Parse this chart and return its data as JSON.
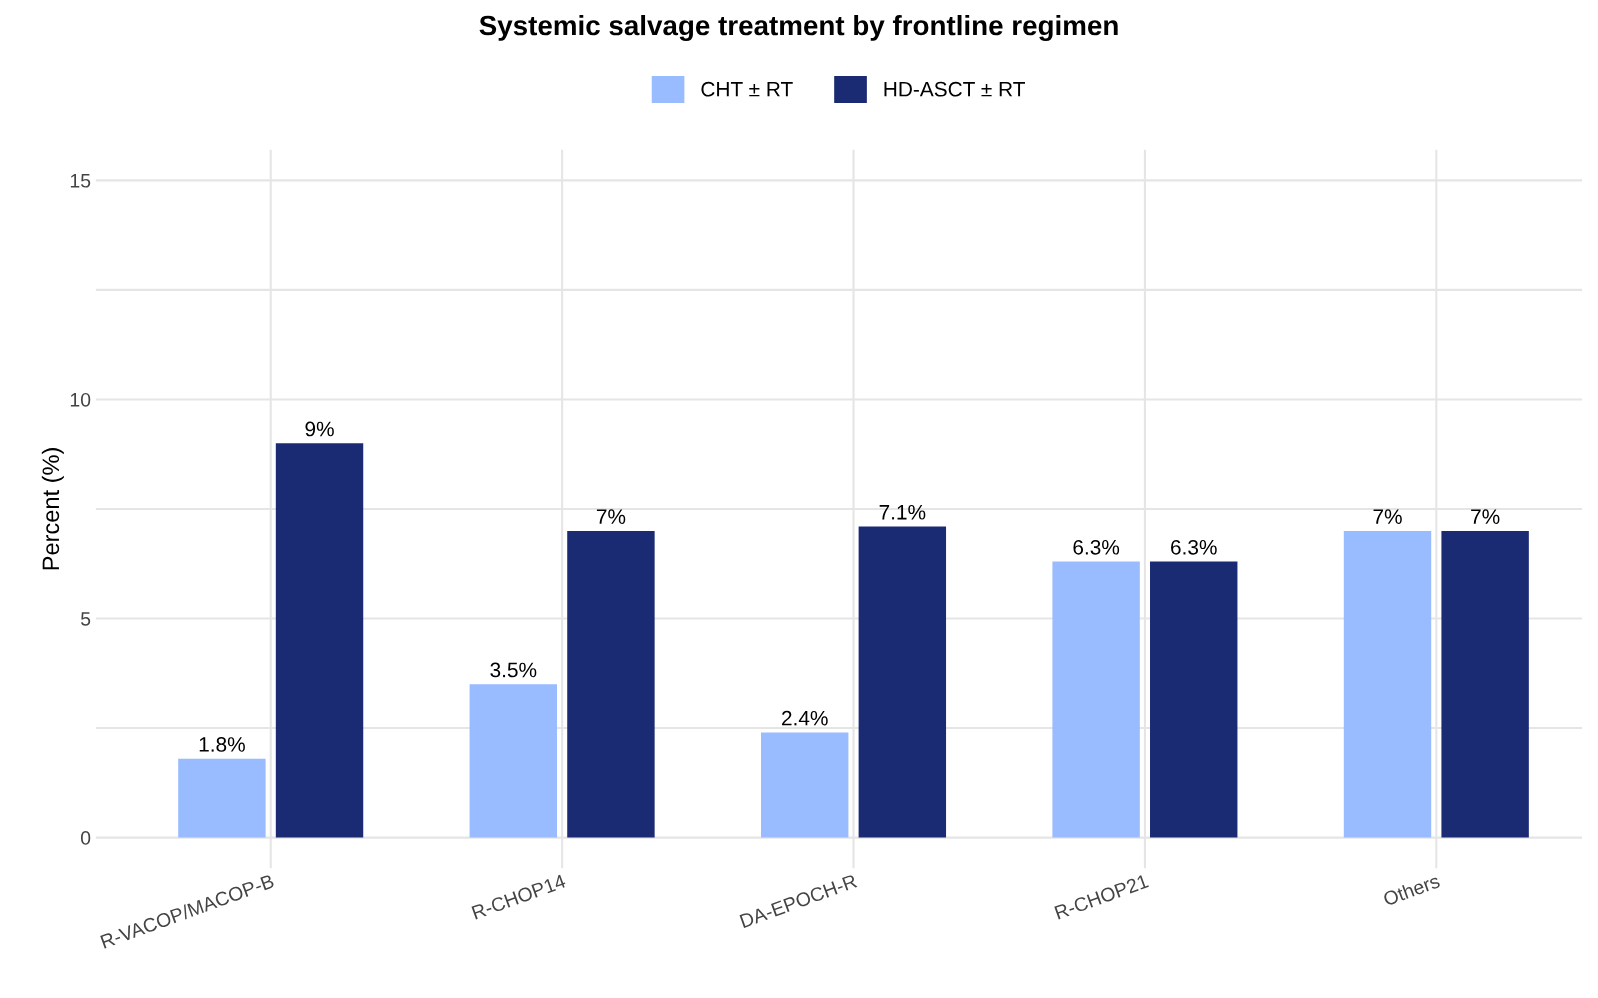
{
  "chart_data": {
    "type": "bar",
    "title": "Systemic salvage treatment by frontline regimen",
    "ylabel": "Percent (%)",
    "categories": [
      "R-VACOP/MACOP-B",
      "R-CHOP14",
      "DA-EPOCH-R",
      "R-CHOP21",
      "Others"
    ],
    "series": [
      {
        "name": "CHT ± RT",
        "color": "#99bbff",
        "values": [
          1.8,
          3.5,
          2.4,
          6.3,
          7
        ],
        "value_labels": [
          "1.8%",
          "3.5%",
          "2.4%",
          "6.3%",
          "7%"
        ]
      },
      {
        "name": "HD-ASCT ± RT",
        "color": "#1a2a73",
        "values": [
          9,
          7,
          7.1,
          6.3,
          7
        ],
        "value_labels": [
          "9%",
          "7%",
          "7.1%",
          "6.3%",
          "7%"
        ]
      }
    ],
    "ylim": [
      -0.7,
      15.7
    ],
    "yticks": [
      0,
      {
        "value": 2.5,
        "label": null
      },
      5,
      {
        "value": 7.5,
        "label": null
      },
      10,
      {
        "value": 12.5,
        "label": null
      },
      15
    ],
    "grid": true,
    "legend": "top"
  }
}
